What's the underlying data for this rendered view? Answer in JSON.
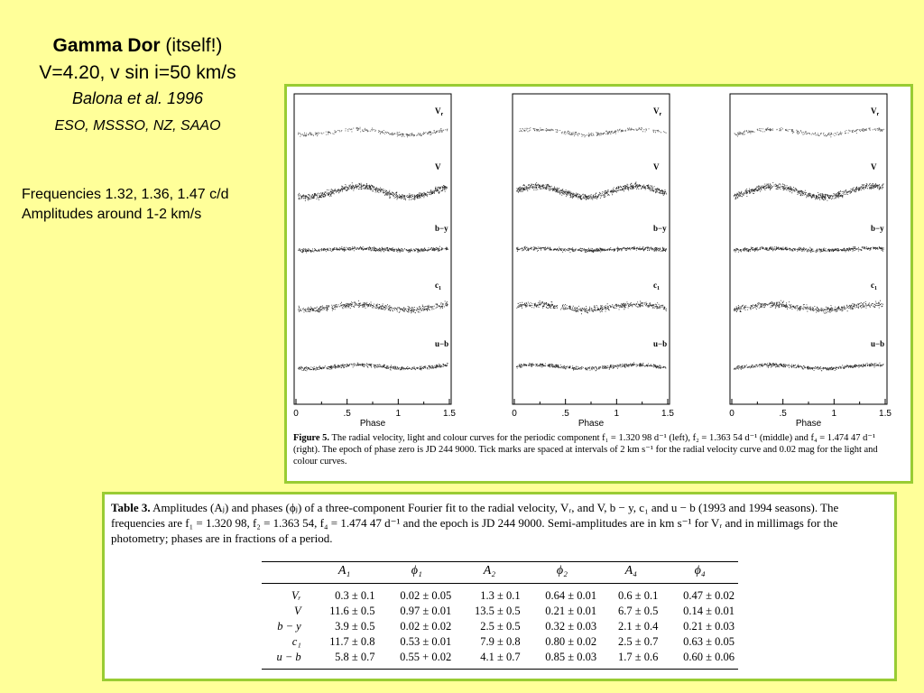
{
  "title": {
    "bold": "Gamma Dor",
    "rest": " (itself!)"
  },
  "subtitle_params": "V=4.20,  v sin i=50 km/s",
  "subtitle_ref": "Balona et al. 1996",
  "subtitle_obs": "ESO, MSSSO, NZ, SAAO",
  "notes": {
    "line1": "Frequencies 1.32, 1.36, 1.47 c/d",
    "line2": "Amplitudes around 1-2 km/s"
  },
  "figure": {
    "panel_labels": [
      "V",
      "V",
      "b−y",
      "c",
      "u−b"
    ],
    "panel_label_subscripts": [
      "r",
      "",
      "",
      "1",
      ""
    ],
    "x_ticks": [
      "0",
      ".5",
      "1",
      "1.5"
    ],
    "x_label": "Phase",
    "colors": {
      "frame": "#99cc33",
      "dots": "#111111"
    },
    "caption_bold": "Figure 5.",
    "caption_text": " The radial velocity, light and colour curves for the periodic component f₁ = 1.320 98 d⁻¹ (left), f₂ = 1.363 54 d⁻¹ (middle) and f₄ = 1.474 47 d⁻¹ (right). The epoch of phase zero is JD 244 9000. Tick marks are spaced at intervals of 2 km s⁻¹ for the radial velocity curve and 0.02 mag for the light and colour curves."
  },
  "table": {
    "caption_bold": "Table 3.",
    "caption_text": " Amplitudes (Aⱼ) and phases (ϕⱼ) of a three-component Fourier fit to the radial velocity, Vᵣ, and V, b − y, c₁ and u − b (1993 and 1994 seasons). The frequencies are f₁ = 1.320 98, f₂ = 1.363 54, f₄ = 1.474 47 d⁻¹ and the epoch is JD 244 9000. Semi-amplitudes are in km s⁻¹ for Vᵣ and in millimags for the photometry; phases are in fractions of a period.",
    "columns": [
      "",
      "A₁",
      "ϕ₁",
      "A₂",
      "ϕ₂",
      "A₄",
      "ϕ₄"
    ],
    "rows": [
      [
        "Vᵣ",
        "0.3 ± 0.1",
        "0.02 ± 0.05",
        "1.3 ± 0.1",
        "0.64 ± 0.01",
        "0.6 ± 0.1",
        "0.47 ± 0.02"
      ],
      [
        "V",
        "11.6 ± 0.5",
        "0.97 ± 0.01",
        "13.5 ± 0.5",
        "0.21 ± 0.01",
        "6.7 ± 0.5",
        "0.14 ± 0.01"
      ],
      [
        "b − y",
        "3.9 ± 0.5",
        "0.02 ± 0.02",
        "2.5 ± 0.5",
        "0.32 ± 0.03",
        "2.1 ± 0.4",
        "0.21 ± 0.03"
      ],
      [
        "c₁",
        "11.7 ± 0.8",
        "0.53 ± 0.01",
        "7.9 ± 0.8",
        "0.80 ± 0.02",
        "2.5 ± 0.7",
        "0.63 ± 0.05"
      ],
      [
        "u − b",
        "5.8 ± 0.7",
        "0.55 + 0.02",
        "4.1 ± 0.7",
        "0.85 ± 0.03",
        "1.7 ± 0.6",
        "0.60 ± 0.06"
      ]
    ]
  }
}
